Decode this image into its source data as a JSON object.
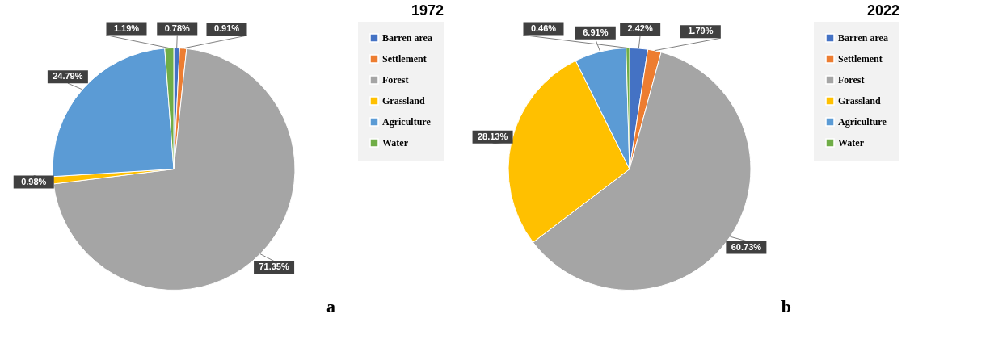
{
  "chart_data": [
    {
      "type": "pie",
      "title": "1972",
      "categories": [
        "Barren area",
        "Settlement",
        "Forest",
        "Grassland",
        "Agriculture",
        "Water"
      ],
      "values": [
        0.78,
        0.91,
        71.35,
        0.98,
        24.79,
        1.19
      ],
      "colors": [
        "#4472c4",
        "#ed7d31",
        "#a5a5a5",
        "#ffc000",
        "#5b9bd5",
        "#70ad47"
      ],
      "value_labels": [
        "0.78%",
        "0.91%",
        "71.35%",
        "0.98%",
        "24.79%",
        "1.19%"
      ],
      "legend": "right",
      "annotations": [
        "a"
      ]
    },
    {
      "type": "pie",
      "title": "2022",
      "categories": [
        "Barren area",
        "Settlement",
        "Forest",
        "Grassland",
        "Agriculture",
        "Water"
      ],
      "values": [
        2.42,
        1.79,
        60.73,
        28.13,
        6.91,
        0.46
      ],
      "colors": [
        "#4472c4",
        "#ed7d31",
        "#a5a5a5",
        "#ffc000",
        "#5b9bd5",
        "#70ad47"
      ],
      "value_labels": [
        "2.42%",
        "1.79%",
        "60.73%",
        "28.13%",
        "6.91%",
        "0.46%"
      ],
      "legend": "right",
      "annotations": [
        "b"
      ]
    }
  ]
}
